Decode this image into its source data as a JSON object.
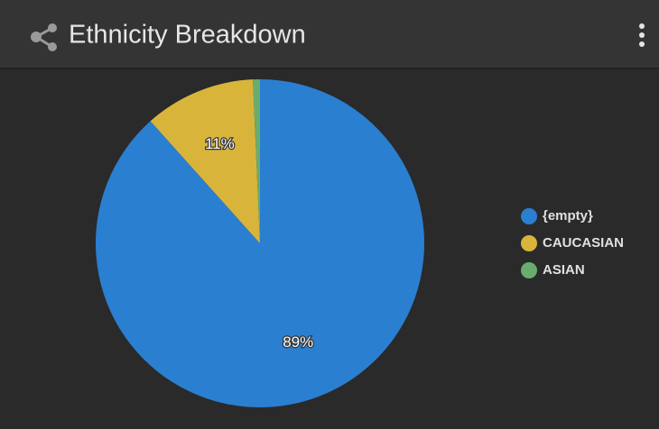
{
  "header": {
    "title": "Ethnicity Breakdown"
  },
  "chart_data": {
    "type": "pie",
    "categories": [
      "{empty}",
      "CAUCASIAN",
      "ASIAN"
    ],
    "values": [
      89,
      11,
      0.7
    ],
    "value_labels": [
      "89%",
      "11%",
      null
    ],
    "colors": [
      "#2a7fd0",
      "#d8b53a",
      "#6aac6e"
    ],
    "legend": "right"
  }
}
